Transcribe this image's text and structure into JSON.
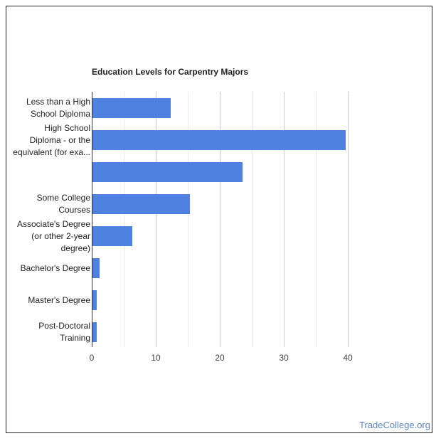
{
  "chart_data": {
    "type": "bar",
    "orientation": "horizontal",
    "title": "Education Levels for Carpentry Majors",
    "xlabel": "",
    "ylabel": "",
    "categories": [
      "Less than a High School Diploma",
      "High School Diploma - or the equivalent (for exa...",
      "",
      "Some College Courses",
      "Associate's Degree (or other 2-year degree)",
      "Bachelor's Degree",
      "Master's Degree",
      "Post-Doctoral Training"
    ],
    "values": [
      12.3,
      39.7,
      23.6,
      15.3,
      6.3,
      1.2,
      0.8,
      0.8
    ],
    "xlim": [
      0,
      40
    ],
    "xticks": [
      "0",
      "10",
      "20",
      "30",
      "40"
    ],
    "grid": true,
    "legend": "none",
    "bar_color": "#4f81e0"
  },
  "labels": [
    [
      "Less than a High",
      "School Diploma"
    ],
    [
      "High School",
      "Diploma - or the",
      "equivalent (for exa..."
    ],
    [],
    [
      "Some College",
      "Courses"
    ],
    [
      "Associate's Degree",
      "(or other 2-year",
      "degree)"
    ],
    [
      "Bachelor's Degree"
    ],
    [
      "Master's Degree"
    ],
    [
      "Post-Doctoral",
      "Training"
    ]
  ],
  "watermark": "TradeCollege.org"
}
